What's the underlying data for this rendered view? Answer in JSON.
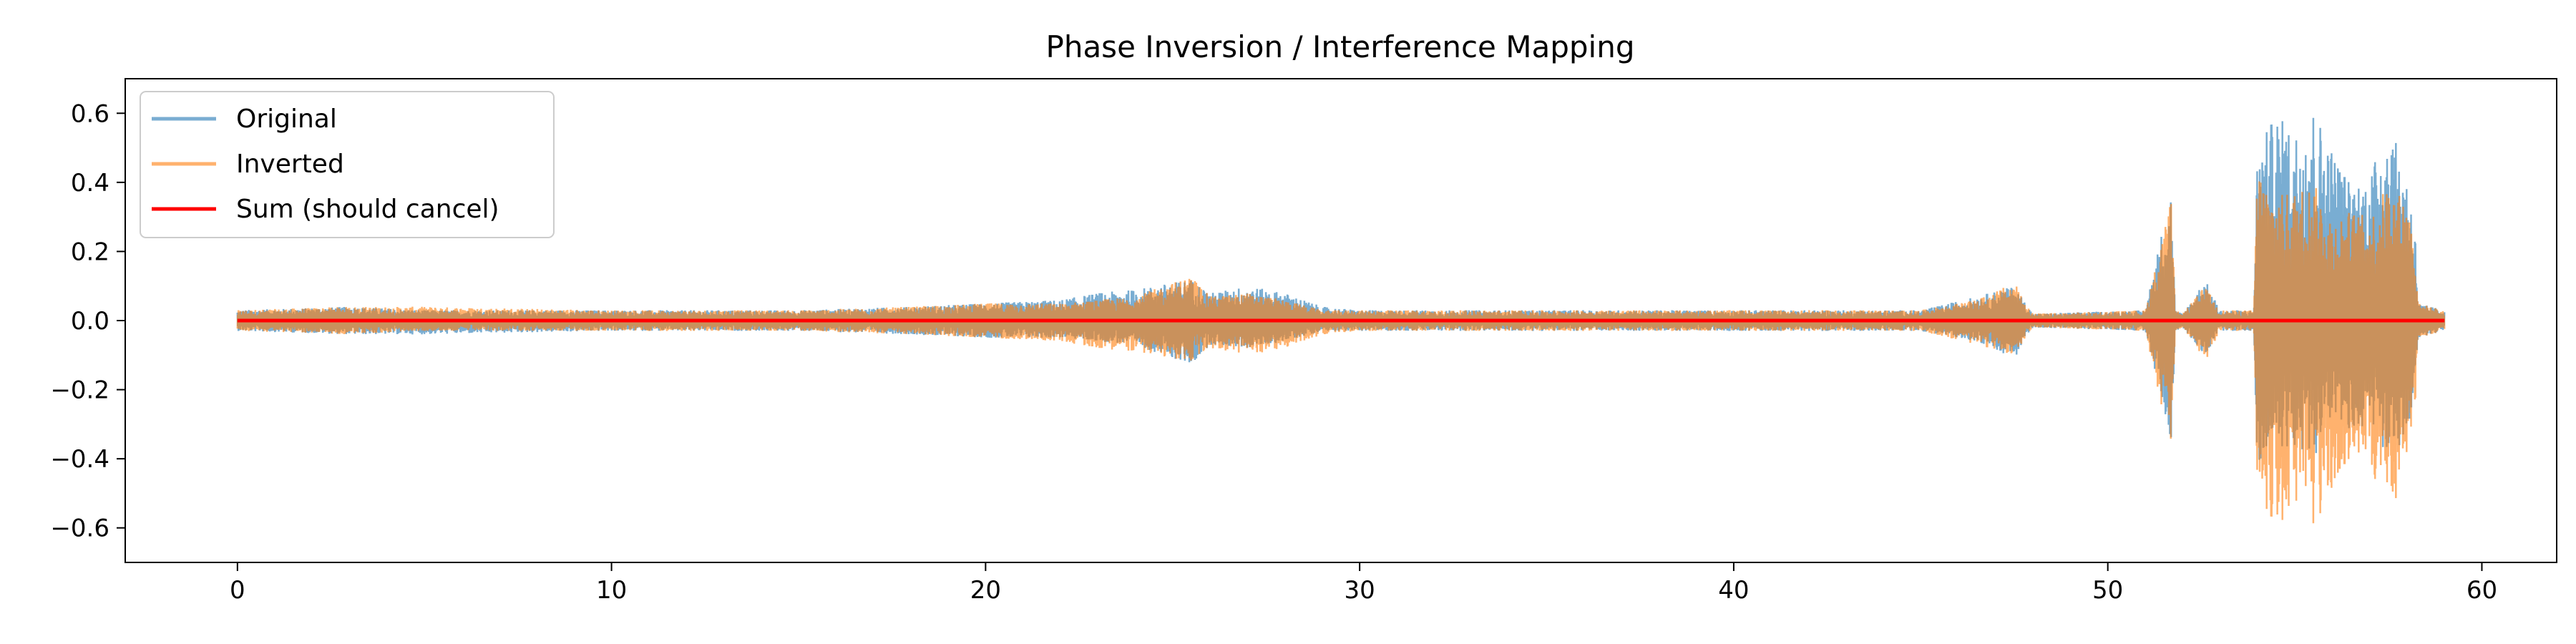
{
  "chart_data": {
    "type": "line",
    "title": "Phase Inversion / Interference Mapping",
    "xlabel": "",
    "ylabel": "",
    "xlim": [
      -3,
      62
    ],
    "ylim": [
      -0.7,
      0.7
    ],
    "xticks": [
      0,
      10,
      20,
      30,
      40,
      50,
      60
    ],
    "xtick_labels": [
      "0",
      "10",
      "20",
      "30",
      "40",
      "50",
      "60"
    ],
    "yticks": [
      0.6,
      0.4,
      0.2,
      0.0,
      -0.2,
      -0.4,
      -0.6
    ],
    "ytick_labels": [
      "0.6",
      "0.4",
      "0.2",
      "0.0",
      "−0.2",
      "−0.4",
      "−0.6"
    ],
    "grid": false,
    "legend_position": "top-left",
    "x_range": [
      0,
      59
    ],
    "envelope": {
      "x": [
        0,
        3,
        5,
        10,
        15,
        18,
        20,
        22,
        23,
        24,
        25.5,
        26,
        27,
        28,
        29,
        30,
        32,
        35,
        40,
        45,
        46.5,
        47.5,
        48,
        51,
        51.7,
        51.8,
        52,
        52.6,
        53,
        53.9,
        54,
        54.5,
        55,
        55.5,
        56,
        56.5,
        57,
        57.5,
        58,
        58.2,
        58.3,
        59
      ],
      "upper": [
        0.03,
        0.04,
        0.03,
        0.03,
        0.03,
        0.04,
        0.05,
        0.06,
        0.08,
        0.09,
        0.12,
        0.08,
        0.1,
        0.08,
        0.04,
        0.03,
        0.03,
        0.03,
        0.03,
        0.03,
        0.07,
        0.1,
        0.02,
        0.03,
        0.39,
        0.03,
        0.02,
        0.12,
        0.03,
        0.03,
        0.5,
        0.6,
        0.55,
        0.62,
        0.5,
        0.4,
        0.42,
        0.58,
        0.42,
        0.3,
        0.05,
        0.03
      ],
      "lower": [
        -0.03,
        -0.04,
        -0.04,
        -0.03,
        -0.03,
        -0.04,
        -0.05,
        -0.05,
        -0.06,
        -0.07,
        -0.13,
        -0.07,
        -0.08,
        -0.06,
        -0.03,
        -0.03,
        -0.03,
        -0.03,
        -0.03,
        -0.03,
        -0.06,
        -0.11,
        -0.02,
        -0.03,
        -0.35,
        -0.03,
        -0.02,
        -0.1,
        -0.03,
        -0.03,
        -0.45,
        -0.36,
        -0.38,
        -0.4,
        -0.3,
        -0.32,
        -0.3,
        -0.4,
        -0.35,
        -0.25,
        -0.05,
        -0.03
      ]
    },
    "series": [
      {
        "name": "Original",
        "color": "#1f77b4",
        "opacity": 0.6
      },
      {
        "name": "Inverted",
        "color": "#ff7f0e",
        "opacity": 0.6
      },
      {
        "name": "Sum (should cancel)",
        "color": "#ff0000",
        "values": "0.0 constant"
      }
    ]
  }
}
